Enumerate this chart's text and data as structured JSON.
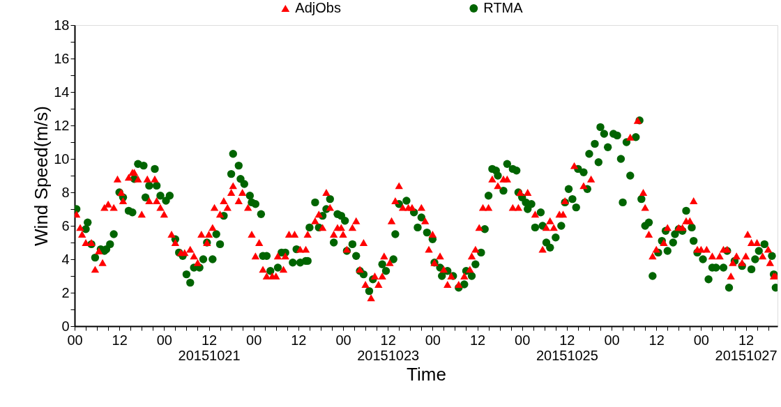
{
  "chart_data": {
    "type": "scatter",
    "xlabel": "Time",
    "ylabel": "Wind Speed(m/s)",
    "xlim": [
      "2015-10-20T00:00",
      "2015-10-27T20:30"
    ],
    "ylim": [
      0,
      18
    ],
    "xticks": [
      {
        "value": "2015-10-20T00:00",
        "label": "00"
      },
      {
        "value": "2015-10-20T03:00",
        "label": null
      },
      {
        "value": "2015-10-20T06:00",
        "label": null
      },
      {
        "value": "2015-10-20T09:00",
        "label": null
      },
      {
        "value": "2015-10-20T12:00",
        "label": "12"
      },
      {
        "value": "2015-10-20T15:00",
        "label": null
      },
      {
        "value": "2015-10-20T18:00",
        "label": null
      },
      {
        "value": "2015-10-20T21:00",
        "label": null
      },
      {
        "value": "2015-10-21T00:00",
        "label": "00"
      },
      {
        "value": "2015-10-21T03:00",
        "label": null
      },
      {
        "value": "2015-10-21T06:00",
        "label": null
      },
      {
        "value": "2015-10-21T09:00",
        "label": null
      },
      {
        "value": "2015-10-21T12:00",
        "label": "12\n20151021"
      },
      {
        "value": "2015-10-21T15:00",
        "label": null
      },
      {
        "value": "2015-10-21T18:00",
        "label": null
      },
      {
        "value": "2015-10-21T21:00",
        "label": null
      },
      {
        "value": "2015-10-22T00:00",
        "label": "00"
      },
      {
        "value": "2015-10-22T03:00",
        "label": null
      },
      {
        "value": "2015-10-22T06:00",
        "label": null
      },
      {
        "value": "2015-10-22T09:00",
        "label": null
      },
      {
        "value": "2015-10-22T12:00",
        "label": "12"
      },
      {
        "value": "2015-10-22T15:00",
        "label": null
      },
      {
        "value": "2015-10-22T18:00",
        "label": null
      },
      {
        "value": "2015-10-22T21:00",
        "label": null
      },
      {
        "value": "2015-10-23T00:00",
        "label": "00"
      },
      {
        "value": "2015-10-23T03:00",
        "label": null
      },
      {
        "value": "2015-10-23T06:00",
        "label": null
      },
      {
        "value": "2015-10-23T09:00",
        "label": null
      },
      {
        "value": "2015-10-23T12:00",
        "label": "12\n20151023"
      },
      {
        "value": "2015-10-23T15:00",
        "label": null
      },
      {
        "value": "2015-10-23T18:00",
        "label": null
      },
      {
        "value": "2015-10-23T21:00",
        "label": null
      },
      {
        "value": "2015-10-24T00:00",
        "label": "00"
      },
      {
        "value": "2015-10-24T03:00",
        "label": null
      },
      {
        "value": "2015-10-24T06:00",
        "label": null
      },
      {
        "value": "2015-10-24T09:00",
        "label": null
      },
      {
        "value": "2015-10-24T12:00",
        "label": "12"
      },
      {
        "value": "2015-10-24T15:00",
        "label": null
      },
      {
        "value": "2015-10-24T18:00",
        "label": null
      },
      {
        "value": "2015-10-24T21:00",
        "label": null
      },
      {
        "value": "2015-10-25T00:00",
        "label": "00"
      },
      {
        "value": "2015-10-25T03:00",
        "label": null
      },
      {
        "value": "2015-10-25T06:00",
        "label": null
      },
      {
        "value": "2015-10-25T09:00",
        "label": null
      },
      {
        "value": "2015-10-25T12:00",
        "label": "12\n20151025"
      },
      {
        "value": "2015-10-25T15:00",
        "label": null
      },
      {
        "value": "2015-10-25T18:00",
        "label": null
      },
      {
        "value": "2015-10-25T21:00",
        "label": null
      },
      {
        "value": "2015-10-26T00:00",
        "label": "00"
      },
      {
        "value": "2015-10-26T03:00",
        "label": null
      },
      {
        "value": "2015-10-26T06:00",
        "label": null
      },
      {
        "value": "2015-10-26T09:00",
        "label": null
      },
      {
        "value": "2015-10-26T12:00",
        "label": "12"
      },
      {
        "value": "2015-10-26T15:00",
        "label": null
      },
      {
        "value": "2015-10-26T18:00",
        "label": null
      },
      {
        "value": "2015-10-26T21:00",
        "label": null
      },
      {
        "value": "2015-10-27T00:00",
        "label": "00"
      },
      {
        "value": "2015-10-27T03:00",
        "label": null
      },
      {
        "value": "2015-10-27T06:00",
        "label": null
      },
      {
        "value": "2015-10-27T09:00",
        "label": null
      },
      {
        "value": "2015-10-27T12:00",
        "label": "12\n20151027"
      },
      {
        "value": "2015-10-27T15:00",
        "label": null
      },
      {
        "value": "2015-10-27T18:00",
        "label": null
      }
    ],
    "yticks": [
      0,
      {
        "value": 1,
        "label": null
      },
      2,
      {
        "value": 3,
        "label": null
      },
      4,
      {
        "value": 5,
        "label": null
      },
      6,
      {
        "value": 7,
        "label": null
      },
      8,
      {
        "value": 9,
        "label": null
      },
      10,
      {
        "value": 11,
        "label": null
      },
      12,
      {
        "value": 13,
        "label": null
      },
      14,
      {
        "value": 15,
        "label": null
      },
      16,
      {
        "value": 17,
        "label": null
      },
      18
    ],
    "grid": false,
    "legend": "top",
    "series": [
      {
        "name": "AdjObs",
        "color": "#ff0000",
        "marker": "triangle",
        "x": [
          "2015-10-20T00:30",
          "2015-10-20T01:30",
          "2015-10-20T02:00",
          "2015-10-20T03:00",
          "2015-10-20T04:30",
          "2015-10-20T05:30",
          "2015-10-20T06:30",
          "2015-10-20T07:30",
          "2015-10-20T08:00",
          "2015-10-20T09:00",
          "2015-10-20T10:30",
          "2015-10-20T11:30",
          "2015-10-20T12:30",
          "2015-10-20T13:00",
          "2015-10-20T14:30",
          "2015-10-20T15:30",
          "2015-10-20T16:00",
          "2015-10-20T17:00",
          "2015-10-20T18:00",
          "2015-10-20T19:30",
          "2015-10-20T20:00",
          "2015-10-20T21:30",
          "2015-10-20T22:00",
          "2015-10-20T23:00",
          "2015-10-21T00:00",
          "2015-10-21T02:00",
          "2015-10-21T03:00",
          "2015-10-21T04:30",
          "2015-10-21T05:30",
          "2015-10-21T07:00",
          "2015-10-21T08:00",
          "2015-10-21T09:00",
          "2015-10-21T10:00",
          "2015-10-21T11:30",
          "2015-10-21T12:00",
          "2015-10-21T13:00",
          "2015-10-21T13:30",
          "2015-10-21T15:00",
          "2015-10-21T16:00",
          "2015-10-21T17:00",
          "2015-10-21T18:00",
          "2015-10-21T18:30",
          "2015-10-21T20:00",
          "2015-10-21T21:00",
          "2015-10-21T22:30",
          "2015-10-21T23:30",
          "2015-10-22T00:30",
          "2015-10-22T01:30",
          "2015-10-22T02:30",
          "2015-10-22T03:30",
          "2015-10-22T05:00",
          "2015-10-22T06:00",
          "2015-10-22T06:30",
          "2015-10-22T08:00",
          "2015-10-22T08:30",
          "2015-10-22T09:30",
          "2015-10-22T11:00",
          "2015-10-22T12:30",
          "2015-10-22T14:00",
          "2015-10-22T14:30",
          "2015-10-22T16:30",
          "2015-10-22T17:30",
          "2015-10-22T18:30",
          "2015-10-22T19:30",
          "2015-10-22T20:30",
          "2015-10-22T21:30",
          "2015-10-22T22:30",
          "2015-10-22T23:30",
          "2015-10-23T00:00",
          "2015-10-23T01:00",
          "2015-10-23T02:30",
          "2015-10-23T03:30",
          "2015-10-23T04:30",
          "2015-10-23T05:30",
          "2015-10-23T06:00",
          "2015-10-23T07:30",
          "2015-10-23T08:30",
          "2015-10-23T09:30",
          "2015-10-23T10:30",
          "2015-10-23T11:00",
          "2015-10-23T12:30",
          "2015-10-23T13:00",
          "2015-10-23T14:00",
          "2015-10-23T15:00",
          "2015-10-23T16:00",
          "2015-10-23T17:30",
          "2015-10-23T18:30",
          "2015-10-23T21:00",
          "2015-10-23T22:00",
          "2015-10-23T23:00",
          "2015-10-24T00:00",
          "2015-10-24T00:30",
          "2015-10-24T02:00",
          "2015-10-24T03:00",
          "2015-10-24T04:00",
          "2015-10-24T05:00",
          "2015-10-24T07:00",
          "2015-10-24T08:30",
          "2015-10-24T10:00",
          "2015-10-24T10:30",
          "2015-10-24T11:30",
          "2015-10-24T12:30",
          "2015-10-24T13:30",
          "2015-10-24T15:00",
          "2015-10-24T16:00",
          "2015-10-24T17:30",
          "2015-10-24T19:00",
          "2015-10-24T20:00",
          "2015-10-24T21:30",
          "2015-10-24T23:00",
          "2015-10-24T23:30",
          "2015-10-25T01:30",
          "2015-10-25T03:30",
          "2015-10-25T05:30",
          "2015-10-25T06:30",
          "2015-10-25T07:30",
          "2015-10-25T08:30",
          "2015-10-25T10:00",
          "2015-10-25T11:00",
          "2015-10-25T11:30",
          "2015-10-25T14:00",
          "2015-10-25T16:30",
          "2015-10-25T18:30",
          "2015-10-26T05:00",
          "2015-10-26T07:00",
          "2015-10-26T08:30",
          "2015-10-26T09:00",
          "2015-10-26T10:00",
          "2015-10-26T11:00",
          "2015-10-26T12:00",
          "2015-10-26T14:00",
          "2015-10-26T15:00",
          "2015-10-26T18:00",
          "2015-10-26T19:00",
          "2015-10-26T20:00",
          "2015-10-26T21:00",
          "2015-10-26T22:00",
          "2015-10-26T23:00",
          "2015-10-27T00:00",
          "2015-10-27T01:30",
          "2015-10-27T03:00",
          "2015-10-27T05:00",
          "2015-10-27T06:00",
          "2015-10-27T07:00",
          "2015-10-27T08:00",
          "2015-10-27T08:30",
          "2015-10-27T09:30",
          "2015-10-27T11:00",
          "2015-10-27T12:00",
          "2015-10-27T12:30",
          "2015-10-27T13:30",
          "2015-10-27T15:00",
          "2015-10-27T16:30",
          "2015-10-27T18:00",
          "2015-10-27T18:30",
          "2015-10-27T19:30",
          "2015-10-27T20:00"
        ],
        "values": [
          6.7,
          5.9,
          5.5,
          5.0,
          5.0,
          3.4,
          4.5,
          3.8,
          7.1,
          7.3,
          7.1,
          8.8,
          8.0,
          7.5,
          8.9,
          9.2,
          9.2,
          8.8,
          6.7,
          8.8,
          7.5,
          8.8,
          7.5,
          7.1,
          6.7,
          5.5,
          5.0,
          4.4,
          4.4,
          4.6,
          4.2,
          3.8,
          5.5,
          5.0,
          5.5,
          5.9,
          7.1,
          6.7,
          7.5,
          7.1,
          8.0,
          8.4,
          7.5,
          8.0,
          7.1,
          5.5,
          4.2,
          5.0,
          3.4,
          3.0,
          3.0,
          3.0,
          4.2,
          3.4,
          4.2,
          5.5,
          5.5,
          4.6,
          4.6,
          5.5,
          6.3,
          6.7,
          5.9,
          8.0,
          7.1,
          5.5,
          5.9,
          5.9,
          5.5,
          4.6,
          5.9,
          6.3,
          3.4,
          5.0,
          2.5,
          1.7,
          3.0,
          2.5,
          3.0,
          4.2,
          3.8,
          6.3,
          7.5,
          8.4,
          7.1,
          7.1,
          7.1,
          7.1,
          6.3,
          4.6,
          5.5,
          3.8,
          4.2,
          3.4,
          2.5,
          3.0,
          2.5,
          3.0,
          3.4,
          4.2,
          4.6,
          5.9,
          7.1,
          7.1,
          8.8,
          8.4,
          8.8,
          8.8,
          7.1,
          7.1,
          8.0,
          8.0,
          6.7,
          4.6,
          5.9,
          6.3,
          5.9,
          6.7,
          6.7,
          7.5,
          9.6,
          8.4,
          8.8,
          11.3,
          12.3,
          8.0,
          7.1,
          5.5,
          4.2,
          4.6,
          5.0,
          5.9,
          5.9,
          5.9,
          6.3,
          6.3,
          7.5,
          4.6,
          4.6,
          4.6,
          4.2,
          4.2,
          4.6,
          4.6,
          3.0,
          3.8,
          4.2,
          3.8,
          4.2,
          5.5,
          5.0,
          5.0,
          4.2,
          4.6,
          3.8,
          3.0,
          3.0
        ]
      },
      {
        "name": "RTMA",
        "color": "#006400",
        "marker": "circle",
        "x": [
          "2015-10-20T00:30",
          "2015-10-20T03:00",
          "2015-10-20T03:30",
          "2015-10-20T04:30",
          "2015-10-20T05:30",
          "2015-10-20T07:00",
          "2015-10-20T08:00",
          "2015-10-20T08:30",
          "2015-10-20T09:30",
          "2015-10-20T10:30",
          "2015-10-20T12:00",
          "2015-10-20T13:00",
          "2015-10-20T14:30",
          "2015-10-20T15:30",
          "2015-10-20T16:00",
          "2015-10-20T17:00",
          "2015-10-20T18:30",
          "2015-10-20T19:00",
          "2015-10-20T20:00",
          "2015-10-20T21:30",
          "2015-10-20T22:00",
          "2015-10-20T23:00",
          "2015-10-21T00:30",
          "2015-10-21T01:30",
          "2015-10-21T03:00",
          "2015-10-21T04:00",
          "2015-10-21T05:00",
          "2015-10-21T06:00",
          "2015-10-21T07:00",
          "2015-10-21T08:00",
          "2015-10-21T09:30",
          "2015-10-21T10:30",
          "2015-10-21T11:30",
          "2015-10-21T13:00",
          "2015-10-21T14:00",
          "2015-10-21T15:00",
          "2015-10-21T16:00",
          "2015-10-21T18:00",
          "2015-10-21T18:30",
          "2015-10-21T20:00",
          "2015-10-21T20:30",
          "2015-10-21T21:30",
          "2015-10-21T23:00",
          "2015-10-21T23:30",
          "2015-10-22T00:30",
          "2015-10-22T02:00",
          "2015-10-22T02:30",
          "2015-10-22T03:30",
          "2015-10-22T04:30",
          "2015-10-22T06:30",
          "2015-10-22T07:30",
          "2015-10-22T08:30",
          "2015-10-22T10:30",
          "2015-10-22T11:30",
          "2015-10-22T12:30",
          "2015-10-22T14:00",
          "2015-10-22T14:30",
          "2015-10-22T15:00",
          "2015-10-22T16:30",
          "2015-10-22T17:30",
          "2015-10-22T18:30",
          "2015-10-22T19:30",
          "2015-10-22T20:30",
          "2015-10-22T21:30",
          "2015-10-22T22:30",
          "2015-10-22T23:30",
          "2015-10-23T00:30",
          "2015-10-23T01:00",
          "2015-10-23T02:30",
          "2015-10-23T03:30",
          "2015-10-23T04:30",
          "2015-10-23T05:30",
          "2015-10-23T07:00",
          "2015-10-23T08:00",
          "2015-10-23T10:30",
          "2015-10-23T11:30",
          "2015-10-23T13:30",
          "2015-10-23T14:00",
          "2015-10-23T15:00",
          "2015-10-23T17:00",
          "2015-10-23T19:00",
          "2015-10-23T20:00",
          "2015-10-23T21:00",
          "2015-10-23T22:30",
          "2015-10-24T00:00",
          "2015-10-24T00:30",
          "2015-10-24T02:00",
          "2015-10-24T02:30",
          "2015-10-24T04:00",
          "2015-10-24T05:30",
          "2015-10-24T07:00",
          "2015-10-24T08:30",
          "2015-10-24T09:00",
          "2015-10-24T10:30",
          "2015-10-24T11:30",
          "2015-10-24T13:00",
          "2015-10-24T14:00",
          "2015-10-24T15:00",
          "2015-10-24T16:00",
          "2015-10-24T17:00",
          "2015-10-24T17:30",
          "2015-10-24T19:00",
          "2015-10-24T20:00",
          "2015-10-24T21:30",
          "2015-10-24T22:30",
          "2015-10-24T23:00",
          "2015-10-25T00:00",
          "2015-10-25T01:00",
          "2015-10-25T01:30",
          "2015-10-25T02:30",
          "2015-10-25T03:30",
          "2015-10-25T05:00",
          "2015-10-25T05:30",
          "2015-10-25T06:30",
          "2015-10-25T07:30",
          "2015-10-25T09:00",
          "2015-10-25T10:30",
          "2015-10-25T11:30",
          "2015-10-25T12:30",
          "2015-10-25T13:30",
          "2015-10-25T14:30",
          "2015-10-25T15:00",
          "2015-10-25T16:30",
          "2015-10-25T17:30",
          "2015-10-25T18:00",
          "2015-10-25T19:30",
          "2015-10-25T20:30",
          "2015-10-25T21:00",
          "2015-10-25T22:00",
          "2015-10-25T23:00",
          "2015-10-26T00:30",
          "2015-10-26T01:30",
          "2015-10-26T02:30",
          "2015-10-26T03:00",
          "2015-10-26T04:00",
          "2015-10-26T05:00",
          "2015-10-26T06:30",
          "2015-10-26T07:30",
          "2015-10-26T08:00",
          "2015-10-26T09:00",
          "2015-10-26T10:00",
          "2015-10-26T11:00",
          "2015-10-26T12:30",
          "2015-10-26T13:30",
          "2015-10-26T14:30",
          "2015-10-26T15:00",
          "2015-10-26T16:30",
          "2015-10-26T17:00",
          "2015-10-26T18:00",
          "2015-10-26T19:00",
          "2015-10-26T20:00",
          "2015-10-26T21:30",
          "2015-10-26T22:00",
          "2015-10-26T23:00",
          "2015-10-27T00:30",
          "2015-10-27T02:00",
          "2015-10-27T03:00",
          "2015-10-27T04:00",
          "2015-10-27T06:00",
          "2015-10-27T07:00",
          "2015-10-27T07:30",
          "2015-10-27T09:00",
          "2015-10-27T11:00",
          "2015-10-27T13:30",
          "2015-10-27T14:30",
          "2015-10-27T15:30",
          "2015-10-27T17:00",
          "2015-10-27T19:00",
          "2015-10-27T19:30",
          "2015-10-27T20:00"
        ],
        "values": [
          7.0,
          5.8,
          6.2,
          4.9,
          4.1,
          4.6,
          4.5,
          4.6,
          4.9,
          5.5,
          8.0,
          7.7,
          6.9,
          6.8,
          8.8,
          9.7,
          9.6,
          7.7,
          8.4,
          9.4,
          8.4,
          7.8,
          7.5,
          7.8,
          5.2,
          4.4,
          4.2,
          3.1,
          2.6,
          3.5,
          3.5,
          4.0,
          5.0,
          4.0,
          5.5,
          4.9,
          6.6,
          9.1,
          10.3,
          9.6,
          8.8,
          8.5,
          7.8,
          7.4,
          7.3,
          6.7,
          4.2,
          4.2,
          3.3,
          3.5,
          4.4,
          4.4,
          3.8,
          4.6,
          3.8,
          3.9,
          3.9,
          5.9,
          7.4,
          5.9,
          6.6,
          7.0,
          7.6,
          5.0,
          6.7,
          6.6,
          6.3,
          4.5,
          4.9,
          4.2,
          3.3,
          3.1,
          2.1,
          2.8,
          3.7,
          3.3,
          4.0,
          5.5,
          7.3,
          7.5,
          6.8,
          5.9,
          6.5,
          5.6,
          5.2,
          3.8,
          3.5,
          3.0,
          3.3,
          3.0,
          2.3,
          2.5,
          3.3,
          3.0,
          3.7,
          4.4,
          5.8,
          7.8,
          9.4,
          9.3,
          9.0,
          8.1,
          9.7,
          9.4,
          9.3,
          8.0,
          7.7,
          7.4,
          7.0,
          7.3,
          5.9,
          6.8,
          6.0,
          5.0,
          4.7,
          5.3,
          6.0,
          7.4,
          8.2,
          7.6,
          7.1,
          9.4,
          9.2,
          8.2,
          10.3,
          10.9,
          9.8,
          11.9,
          11.5,
          10.7,
          11.5,
          11.4,
          10.0,
          7.4,
          11.0,
          9.0,
          11.3,
          12.3,
          7.6,
          6.0,
          6.2,
          3.0,
          4.4,
          5.1,
          5.7,
          4.5,
          5.0,
          5.5,
          5.8,
          5.7,
          6.9,
          5.9,
          5.1,
          4.4,
          4.0,
          2.8,
          3.5,
          3.5,
          3.5,
          4.5,
          2.3,
          3.9,
          3.6,
          3.4,
          4.0,
          4.5,
          4.9,
          4.2,
          3.1,
          2.3
        ]
      }
    ]
  }
}
